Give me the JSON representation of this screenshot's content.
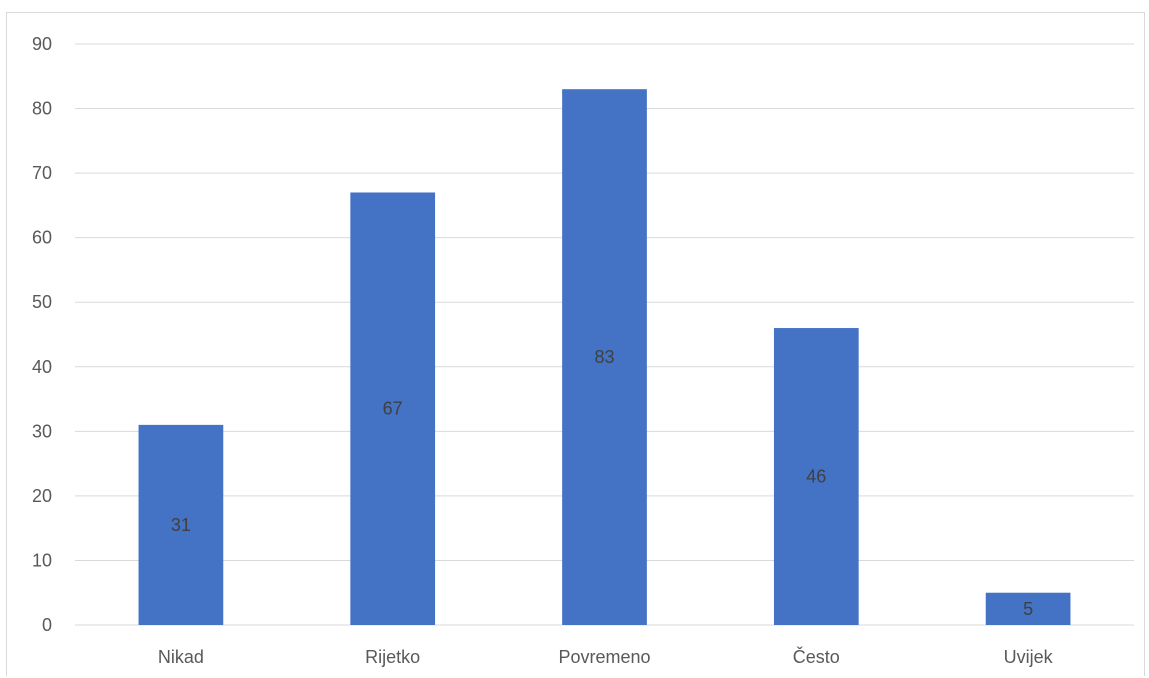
{
  "chart_data": {
    "type": "bar",
    "categories": [
      "Nikad",
      "Rijetko",
      "Povremeno",
      "Često",
      "Uvijek"
    ],
    "values": [
      31,
      67,
      83,
      46,
      5
    ],
    "title": "",
    "xlabel": "",
    "ylabel": "",
    "ylim": [
      0,
      90
    ],
    "yticks": [
      0,
      10,
      20,
      30,
      40,
      50,
      60,
      70,
      80,
      90
    ],
    "grid": true,
    "data_labels": true,
    "bar_color": "#4472c4",
    "grid_color": "#d9d9d9"
  }
}
